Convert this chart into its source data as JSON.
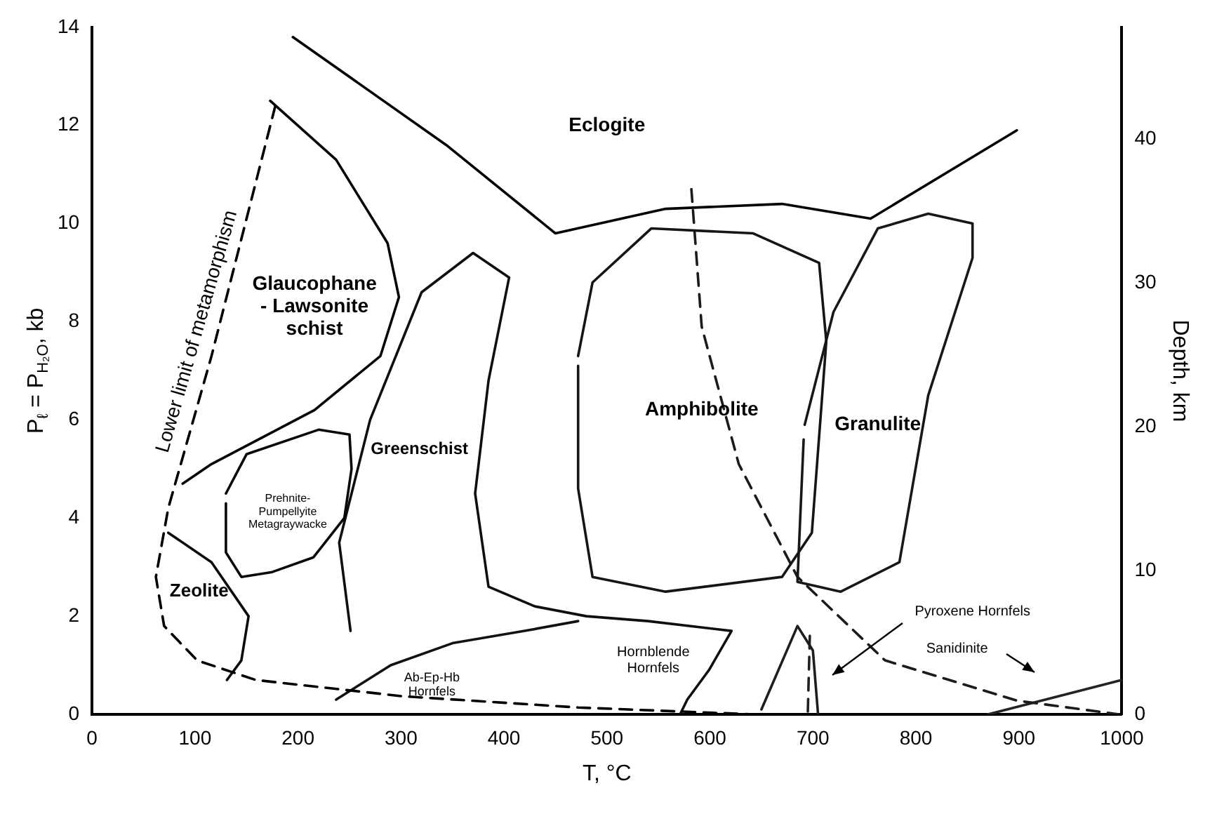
{
  "chart_data": {
    "type": "line",
    "xlabel": "T, °C",
    "ylabel": "P$_{ℓ}$ = P$_{H₂O}$, kb",
    "y2label": "Depth, km",
    "xlim": [
      0,
      1000
    ],
    "xticks": [
      0,
      100,
      200,
      300,
      400,
      500,
      600,
      700,
      800,
      900,
      1000
    ],
    "ylim": [
      0,
      14
    ],
    "yticks": [
      0,
      2,
      4,
      6,
      8,
      10,
      12,
      14
    ],
    "y2lim": [
      0,
      47.8
    ],
    "y2ticks": [
      0,
      10,
      20,
      30,
      40
    ],
    "marker": "none",
    "series": [
      {
        "color": "#000000",
        "line_style": "dashed",
        "x": [
          178,
          116,
          74,
          62,
          70,
          102,
          159,
          301,
          472,
          642
        ],
        "values": [
          12.4,
          7.3,
          4.2,
          2.8,
          1.8,
          1.1,
          0.7,
          0.37,
          0.14,
          0
        ]
      },
      {
        "color": "#030303",
        "line_style": "solid",
        "x": [
          195,
          344,
          450,
          557,
          670,
          756,
          898
        ],
        "values": [
          13.8,
          11.6,
          9.8,
          10.3,
          10.4,
          10.1,
          11.9
        ]
      },
      {
        "color": "#060606",
        "line_style": "solid",
        "x": [
          173,
          237,
          287,
          298,
          280,
          216,
          116,
          88
        ],
        "values": [
          12.5,
          11.3,
          9.6,
          8.5,
          7.3,
          6.2,
          5.1,
          4.7
        ]
      },
      {
        "color": "#090909",
        "line_style": "solid",
        "x": [
          130,
          150,
          220,
          250,
          252,
          245,
          215,
          175,
          145,
          130,
          130
        ],
        "values": [
          4.5,
          5.3,
          5.8,
          5.7,
          5.0,
          4.0,
          3.2,
          2.9,
          2.8,
          3.3,
          4.3
        ]
      },
      {
        "color": "#0c0c0c",
        "line_style": "solid",
        "x": [
          74,
          116,
          152,
          145,
          131
        ],
        "values": [
          3.7,
          3.1,
          2.0,
          1.1,
          0.7
        ]
      },
      {
        "color": "#0f0f0f",
        "line_style": "solid",
        "x": [
          251,
          240,
          270,
          320,
          370,
          405,
          385,
          372,
          385,
          430,
          480,
          540,
          621,
          599,
          578,
          571
        ],
        "values": [
          1.7,
          3.5,
          6.0,
          8.6,
          9.4,
          8.9,
          6.8,
          4.5,
          2.6,
          2.2,
          2.0,
          1.9,
          1.7,
          0.9,
          0.3,
          0
        ]
      },
      {
        "color": "#121212",
        "line_style": "solid",
        "x": [
          237,
          290,
          350,
          420,
          472
        ],
        "values": [
          0.3,
          1.0,
          1.45,
          1.7,
          1.9
        ]
      },
      {
        "color": "#151515",
        "line_style": "solid",
        "x": [
          472,
          486,
          543,
          642,
          706,
          713,
          699,
          670,
          557,
          486,
          472,
          472
        ],
        "values": [
          7.3,
          8.8,
          9.9,
          9.8,
          9.2,
          7.6,
          3.7,
          2.8,
          2.5,
          2.8,
          4.6,
          7.1
        ]
      },
      {
        "color": "#181818",
        "line_style": "solid",
        "x": [
          692,
          720,
          763,
          812,
          855,
          855,
          812,
          784,
          727,
          685,
          691
        ],
        "values": [
          5.9,
          8.2,
          9.9,
          10.2,
          10.0,
          9.3,
          6.5,
          3.1,
          2.5,
          2.7,
          5.6
        ]
      },
      {
        "color": "#1b1b1b",
        "line_style": "dashed",
        "x": [
          582,
          592,
          628,
          685,
          770,
          898,
          997
        ],
        "values": [
          10.7,
          7.9,
          5.1,
          2.8,
          1.1,
          0.28,
          0
        ]
      },
      {
        "color": "#1e1e1e",
        "line_style": "solid",
        "x": [
          650,
          685,
          700,
          705
        ],
        "values": [
          0.1,
          1.8,
          1.3,
          0
        ]
      },
      {
        "color": "#212121",
        "line_style": "dashed",
        "x": [
          697,
          695
        ],
        "values": [
          1.6,
          0
        ]
      },
      {
        "color": "#242424",
        "line_style": "solid",
        "x": [
          870,
          1000
        ],
        "values": [
          0,
          0.7
        ]
      }
    ],
    "annotations": [
      "Eclogite",
      "Glaucophane\n- Lawsonite\nschist",
      "Prehnite-\nPumpellyite\nMetagraywacke",
      "Zeolite",
      "Greenschist",
      "Amphibolite",
      "Granulite",
      "Ab-Ep-Hb\nHornfels",
      "Hornblende\nHornfels",
      "Pyroxene Hornfels",
      "Sanidinite",
      "Lower limit of metamorphism"
    ]
  }
}
